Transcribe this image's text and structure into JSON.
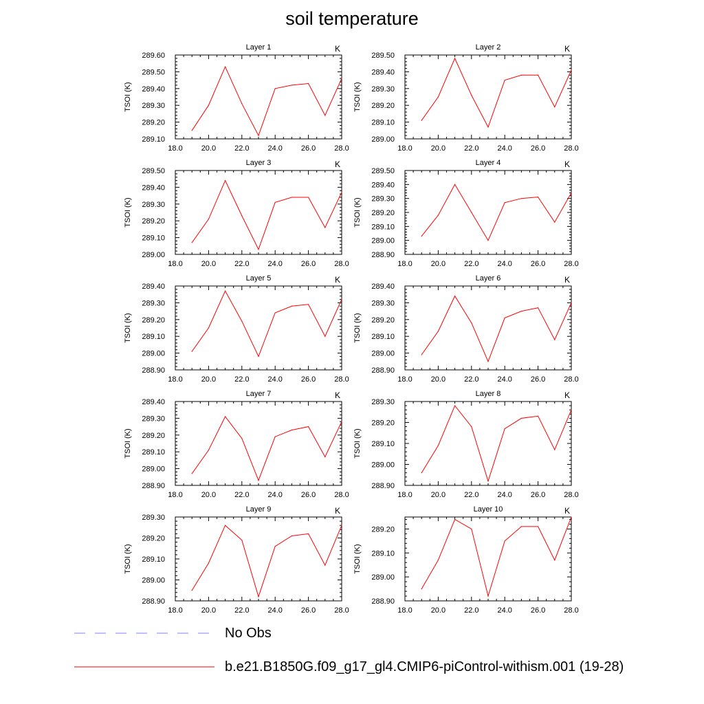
{
  "title": "soil temperature",
  "chart_data": [
    {
      "type": "line",
      "title": "Layer 1",
      "units": "K",
      "ylabel": "TSOI  (K)",
      "x": [
        19,
        20,
        21,
        22,
        23,
        24,
        25,
        26,
        27,
        28
      ],
      "xlim": [
        18,
        28
      ],
      "xticks": [
        "18.0",
        "20.0",
        "22.0",
        "24.0",
        "26.0",
        "28.0"
      ],
      "ylim": [
        289.1,
        289.6
      ],
      "yticks": [
        "289.10",
        "289.20",
        "289.30",
        "289.40",
        "289.50",
        "289.60"
      ],
      "series": [
        {
          "name": "b.e21.B1850G.f09_g17_gl4.CMIP6-piControl-withism.001 (19-28)",
          "color": "#ff0000",
          "values": [
            289.15,
            289.3,
            289.53,
            289.31,
            289.12,
            289.4,
            289.42,
            289.43,
            289.24,
            289.46
          ]
        }
      ]
    },
    {
      "type": "line",
      "title": "Layer 2",
      "units": "K",
      "ylabel": "TSOI  (K)",
      "x": [
        19,
        20,
        21,
        22,
        23,
        24,
        25,
        26,
        27,
        28
      ],
      "xlim": [
        18,
        28
      ],
      "xticks": [
        "18.0",
        "20.0",
        "22.0",
        "24.0",
        "26.0",
        "28.0"
      ],
      "ylim": [
        289.0,
        289.5
      ],
      "yticks": [
        "289.00",
        "289.10",
        "289.20",
        "289.30",
        "289.40",
        "289.50"
      ],
      "series": [
        {
          "name": "b.e21.B1850G.f09_g17_gl4.CMIP6-piControl-withism.001 (19-28)",
          "color": "#ff0000",
          "values": [
            289.11,
            289.25,
            289.48,
            289.26,
            289.07,
            289.35,
            289.38,
            289.38,
            289.19,
            289.41
          ]
        }
      ]
    },
    {
      "type": "line",
      "title": "Layer 3",
      "units": "K",
      "ylabel": "TSOI  (K)",
      "x": [
        19,
        20,
        21,
        22,
        23,
        24,
        25,
        26,
        27,
        28
      ],
      "xlim": [
        18,
        28
      ],
      "xticks": [
        "18.0",
        "20.0",
        "22.0",
        "24.0",
        "26.0",
        "28.0"
      ],
      "ylim": [
        289.0,
        289.5
      ],
      "yticks": [
        "289.00",
        "289.10",
        "289.20",
        "289.30",
        "289.40",
        "289.50"
      ],
      "series": [
        {
          "name": "b.e21.B1850G.f09_g17_gl4.CMIP6-piControl-withism.001 (19-28)",
          "color": "#ff0000",
          "values": [
            289.07,
            289.21,
            289.44,
            289.23,
            289.03,
            289.31,
            289.34,
            289.34,
            289.16,
            289.37
          ]
        }
      ]
    },
    {
      "type": "line",
      "title": "Layer 4",
      "units": "K",
      "ylabel": "TSOI  (K)",
      "x": [
        19,
        20,
        21,
        22,
        23,
        24,
        25,
        26,
        27,
        28
      ],
      "xlim": [
        18,
        28
      ],
      "xticks": [
        "18.0",
        "20.0",
        "22.0",
        "24.0",
        "26.0",
        "28.0"
      ],
      "ylim": [
        288.9,
        289.5
      ],
      "yticks": [
        "288.90",
        "289.00",
        "289.10",
        "289.20",
        "289.30",
        "289.40",
        "289.50"
      ],
      "series": [
        {
          "name": "b.e21.B1850G.f09_g17_gl4.CMIP6-piControl-withism.001 (19-28)",
          "color": "#ff0000",
          "values": [
            289.03,
            289.18,
            289.4,
            289.2,
            289.0,
            289.27,
            289.3,
            289.31,
            289.13,
            289.34
          ]
        }
      ]
    },
    {
      "type": "line",
      "title": "Layer 5",
      "units": "K",
      "ylabel": "TSOI  (K)",
      "x": [
        19,
        20,
        21,
        22,
        23,
        24,
        25,
        26,
        27,
        28
      ],
      "xlim": [
        18,
        28
      ],
      "xticks": [
        "18.0",
        "20.0",
        "22.0",
        "24.0",
        "26.0",
        "28.0"
      ],
      "ylim": [
        288.9,
        289.4
      ],
      "yticks": [
        "288.90",
        "289.00",
        "289.10",
        "289.20",
        "289.30",
        "289.40"
      ],
      "series": [
        {
          "name": "b.e21.B1850G.f09_g17_gl4.CMIP6-piControl-withism.001 (19-28)",
          "color": "#ff0000",
          "values": [
            289.01,
            289.15,
            289.37,
            289.19,
            288.98,
            289.24,
            289.28,
            289.29,
            289.1,
            289.32
          ]
        }
      ]
    },
    {
      "type": "line",
      "title": "Layer 6",
      "units": "K",
      "ylabel": "TSOI  (K)",
      "x": [
        19,
        20,
        21,
        22,
        23,
        24,
        25,
        26,
        27,
        28
      ],
      "xlim": [
        18,
        28
      ],
      "xticks": [
        "18.0",
        "20.0",
        "22.0",
        "24.0",
        "26.0",
        "28.0"
      ],
      "ylim": [
        288.9,
        289.4
      ],
      "yticks": [
        "288.90",
        "289.00",
        "289.10",
        "289.20",
        "289.30",
        "289.40"
      ],
      "series": [
        {
          "name": "b.e21.B1850G.f09_g17_gl4.CMIP6-piControl-withism.001 (19-28)",
          "color": "#ff0000",
          "values": [
            288.99,
            289.13,
            289.34,
            289.18,
            288.95,
            289.21,
            289.25,
            289.27,
            289.08,
            289.3
          ]
        }
      ]
    },
    {
      "type": "line",
      "title": "Layer 7",
      "units": "K",
      "ylabel": "TSOI  (K)",
      "x": [
        19,
        20,
        21,
        22,
        23,
        24,
        25,
        26,
        27,
        28
      ],
      "xlim": [
        18,
        28
      ],
      "xticks": [
        "18.0",
        "20.0",
        "22.0",
        "24.0",
        "26.0",
        "28.0"
      ],
      "ylim": [
        288.9,
        289.4
      ],
      "yticks": [
        "288.90",
        "289.00",
        "289.10",
        "289.20",
        "289.30",
        "289.40"
      ],
      "series": [
        {
          "name": "b.e21.B1850G.f09_g17_gl4.CMIP6-piControl-withism.001 (19-28)",
          "color": "#ff0000",
          "values": [
            288.97,
            289.11,
            289.31,
            289.18,
            288.93,
            289.19,
            289.23,
            289.25,
            289.07,
            289.28
          ]
        }
      ]
    },
    {
      "type": "line",
      "title": "Layer 8",
      "units": "K",
      "ylabel": "TSOI  (K)",
      "x": [
        19,
        20,
        21,
        22,
        23,
        24,
        25,
        26,
        27,
        28
      ],
      "xlim": [
        18,
        28
      ],
      "xticks": [
        "18.0",
        "20.0",
        "22.0",
        "24.0",
        "26.0",
        "28.0"
      ],
      "ylim": [
        288.9,
        289.3
      ],
      "yticks": [
        "288.90",
        "289.00",
        "289.10",
        "289.20",
        "289.30"
      ],
      "series": [
        {
          "name": "b.e21.B1850G.f09_g17_gl4.CMIP6-piControl-withism.001 (19-28)",
          "color": "#ff0000",
          "values": [
            288.96,
            289.09,
            289.28,
            289.18,
            288.92,
            289.17,
            289.22,
            289.23,
            289.07,
            289.26
          ]
        }
      ]
    },
    {
      "type": "line",
      "title": "Layer 9",
      "units": "K",
      "ylabel": "TSOI  (K)",
      "x": [
        19,
        20,
        21,
        22,
        23,
        24,
        25,
        26,
        27,
        28
      ],
      "xlim": [
        18,
        28
      ],
      "xticks": [
        "18.0",
        "20.0",
        "22.0",
        "24.0",
        "26.0",
        "28.0"
      ],
      "ylim": [
        288.9,
        289.3
      ],
      "yticks": [
        "288.90",
        "289.00",
        "289.10",
        "289.20",
        "289.30"
      ],
      "series": [
        {
          "name": "b.e21.B1850G.f09_g17_gl4.CMIP6-piControl-withism.001 (19-28)",
          "color": "#ff0000",
          "values": [
            288.95,
            289.08,
            289.26,
            289.19,
            288.92,
            289.16,
            289.21,
            289.22,
            289.07,
            289.26
          ]
        }
      ]
    },
    {
      "type": "line",
      "title": "Layer 10",
      "units": "K",
      "ylabel": "TSOI  (K)",
      "x": [
        19,
        20,
        21,
        22,
        23,
        24,
        25,
        26,
        27,
        28
      ],
      "xlim": [
        18,
        28
      ],
      "xticks": [
        "18.0",
        "20.0",
        "22.0",
        "24.0",
        "26.0",
        "28.0"
      ],
      "ylim": [
        288.9,
        289.25
      ],
      "yticks": [
        "288.90",
        "289.00",
        "289.10",
        "289.20"
      ],
      "series": [
        {
          "name": "b.e21.B1850G.f09_g17_gl4.CMIP6-piControl-withism.001 (19-28)",
          "color": "#ff0000",
          "values": [
            288.95,
            289.07,
            289.24,
            289.2,
            288.92,
            289.15,
            289.21,
            289.21,
            289.07,
            289.25
          ]
        }
      ]
    }
  ],
  "legend": {
    "items": [
      {
        "label": "No Obs",
        "color": "#8080ff",
        "style": "dashed"
      },
      {
        "label": "b.e21.B1850G.f09_g17_gl4.CMIP6-piControl-withism.001 (19-28)",
        "color": "#ff0000",
        "style": "solid"
      }
    ]
  }
}
